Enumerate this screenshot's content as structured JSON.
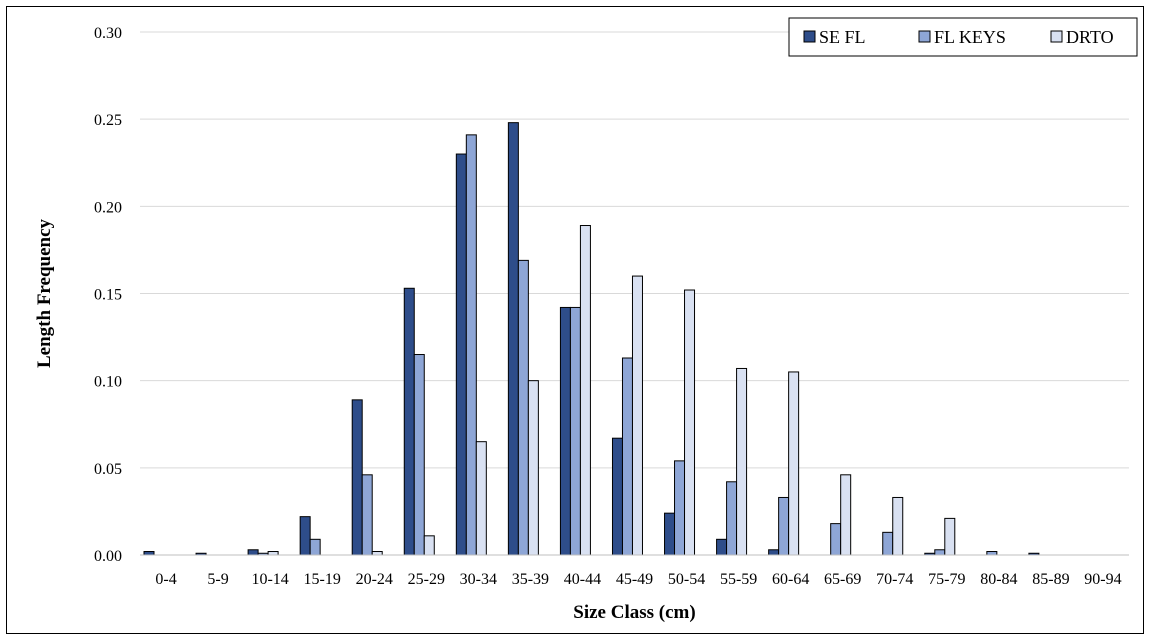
{
  "chart_data": {
    "type": "bar",
    "title": "",
    "xlabel": "Size Class (cm)",
    "ylabel": "Length Frequency",
    "categories": [
      "0-4",
      "5-9",
      "10-14",
      "15-19",
      "20-24",
      "25-29",
      "30-34",
      "35-39",
      "40-44",
      "45-49",
      "50-54",
      "55-59",
      "60-64",
      "65-69",
      "70-74",
      "75-79",
      "80-84",
      "85-89",
      "90-94"
    ],
    "series": [
      {
        "name": "SE FL",
        "color": "#2e4d8a",
        "values": [
          0.002,
          0.001,
          0.003,
          0.022,
          0.089,
          0.153,
          0.23,
          0.248,
          0.142,
          0.067,
          0.024,
          0.009,
          0.003,
          0.0,
          0.0,
          0.001,
          0.0,
          0.001,
          0.0
        ]
      },
      {
        "name": "FL KEYS",
        "color": "#8ea6d6",
        "values": [
          0.0,
          0.0,
          0.001,
          0.009,
          0.046,
          0.115,
          0.241,
          0.169,
          0.142,
          0.113,
          0.054,
          0.042,
          0.033,
          0.018,
          0.013,
          0.003,
          0.002,
          0.0,
          0.0
        ]
      },
      {
        "name": "DRTO",
        "color": "#d9e1f2",
        "values": [
          0.0,
          0.0,
          0.002,
          0.0,
          0.002,
          0.011,
          0.065,
          0.1,
          0.189,
          0.16,
          0.152,
          0.107,
          0.105,
          0.046,
          0.033,
          0.021,
          0.0,
          0.0,
          0.0
        ]
      }
    ],
    "ylim": [
      0,
      0.3
    ],
    "yticks": [
      "0.00",
      "0.05",
      "0.10",
      "0.15",
      "0.20",
      "0.25",
      "0.30"
    ],
    "grid": true,
    "legend_position": "top-right"
  }
}
